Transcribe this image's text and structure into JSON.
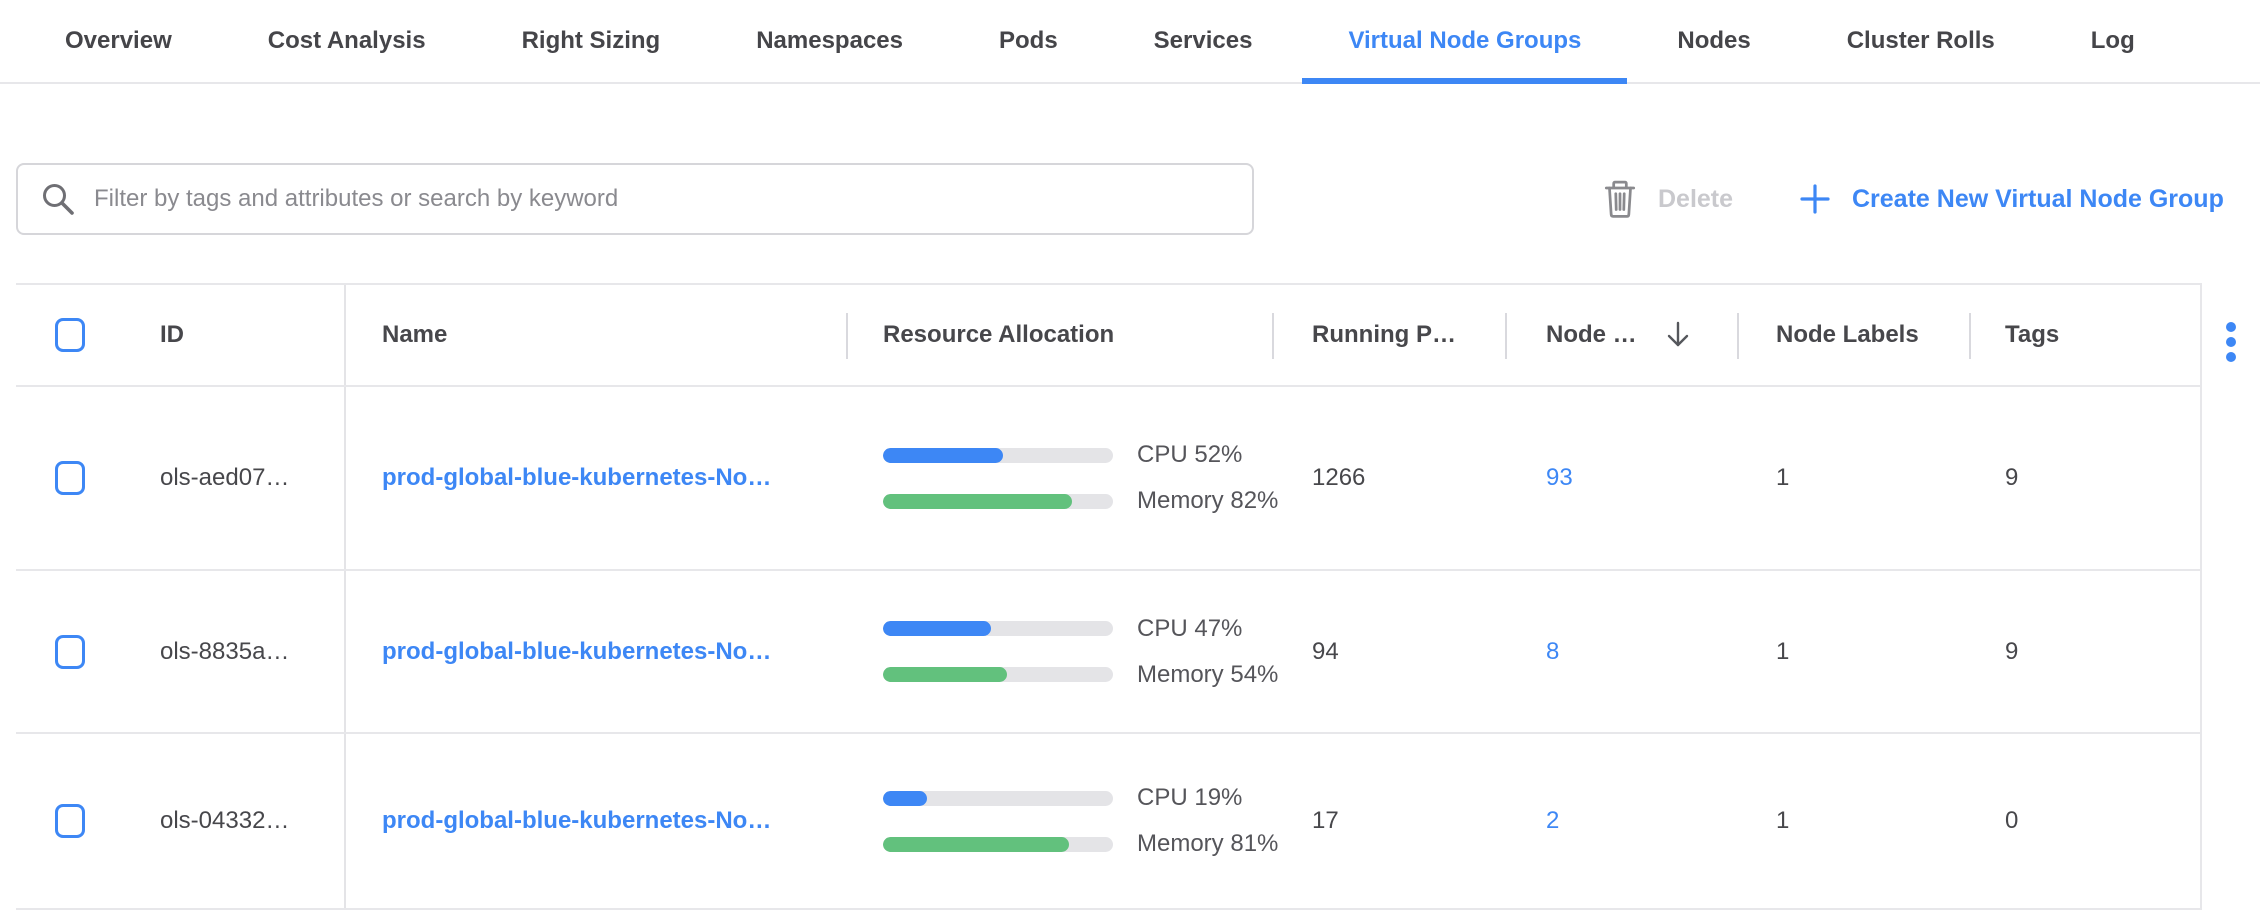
{
  "tabs": {
    "items": [
      {
        "label": "Overview",
        "active": false
      },
      {
        "label": "Cost Analysis",
        "active": false
      },
      {
        "label": "Right Sizing",
        "active": false
      },
      {
        "label": "Namespaces",
        "active": false
      },
      {
        "label": "Pods",
        "active": false
      },
      {
        "label": "Services",
        "active": false
      },
      {
        "label": "Virtual Node Groups",
        "active": true
      },
      {
        "label": "Nodes",
        "active": false
      },
      {
        "label": "Cluster Rolls",
        "active": false
      },
      {
        "label": "Log",
        "active": false
      }
    ]
  },
  "toolbar": {
    "filter_placeholder": "Filter by tags and attributes or search by keyword",
    "delete_label": "Delete",
    "delete_enabled": false,
    "create_label": "Create New Virtual Node Group"
  },
  "table": {
    "columns": {
      "id": "ID",
      "name": "Name",
      "resource_allocation": "Resource Allocation",
      "running_pods": "Running P…",
      "nodes": "Node …",
      "node_labels": "Node Labels",
      "tags": "Tags"
    },
    "sort": {
      "column": "Node …",
      "direction": "desc"
    },
    "rows": [
      {
        "id": "ols-aed07…",
        "name": "prod-global-blue-kubernetes-No…",
        "cpu_pct": 52,
        "cpu_label": "CPU 52%",
        "memory_pct": 82,
        "memory_label": "Memory 82%",
        "running_pods": "1266",
        "nodes": "93",
        "node_labels": "1",
        "tags": "9"
      },
      {
        "id": "ols-8835a…",
        "name": "prod-global-blue-kubernetes-No…",
        "cpu_pct": 47,
        "cpu_label": "CPU 47%",
        "memory_pct": 54,
        "memory_label": "Memory 54%",
        "running_pods": "94",
        "nodes": "8",
        "node_labels": "1",
        "tags": "9"
      },
      {
        "id": "ols-04332…",
        "name": "prod-global-blue-kubernetes-No…",
        "cpu_pct": 19,
        "cpu_label": "CPU 19%",
        "memory_pct": 81,
        "memory_label": "Memory 81%",
        "running_pods": "17",
        "nodes": "2",
        "node_labels": "1",
        "tags": "0"
      }
    ]
  },
  "icons": {
    "search": "magnifier",
    "delete": "trash-outline",
    "create": "plus",
    "sort": "arrow-down",
    "row_menu": "vertical-ellipsis-dots"
  },
  "colors": {
    "accent": "#3d87f5",
    "bar_cpu": "#3d87f5",
    "bar_memory": "#62c17d",
    "bar_track": "#e4e4e7",
    "border": "#e7e7ea",
    "text": "#434347",
    "muted": "#8a8a8f",
    "disabled": "#c9c9cd"
  }
}
